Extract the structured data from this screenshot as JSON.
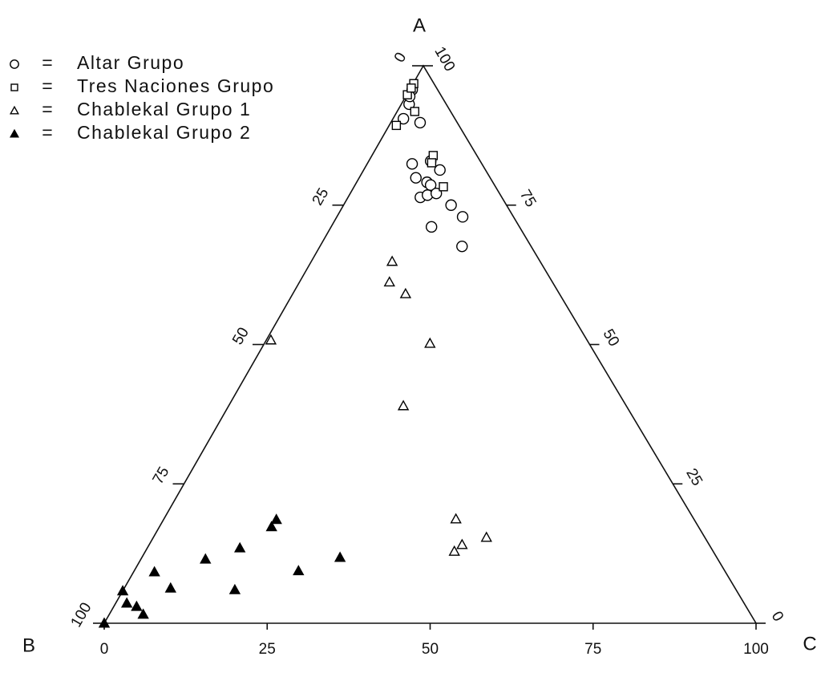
{
  "chart_data": {
    "type": "ternary",
    "vertex_labels": {
      "a": "A",
      "b": "B",
      "c": "C"
    },
    "alim": [
      0,
      100
    ],
    "blim": [
      0,
      100
    ],
    "clim": [
      0,
      100
    ],
    "aticks": [
      0,
      25,
      50,
      75,
      100
    ],
    "bticks": [
      0,
      25,
      50,
      75,
      100
    ],
    "cticks": [
      0,
      25,
      50,
      75,
      100
    ],
    "legend_separator": "=",
    "legend_position": "upper-left",
    "series": [
      {
        "name": "Altar Grupo",
        "marker": "circle",
        "filled": false,
        "color": "#000000",
        "a": [
          95.7,
          93.1,
          90.5,
          89.8,
          82.4,
          82.9,
          81.3,
          79.9,
          79.1,
          78.6,
          76.4,
          76.8,
          77.1,
          75.0,
          72.9,
          71.1,
          67.6,
          94.5
        ],
        "c": [
          0.4,
          1.2,
          1.6,
          4.5,
          6.9,
          9.5,
          11.7,
          8.7,
          10.8,
          11.6,
          11.1,
          12.0,
          13.2,
          16.5,
          19.3,
          15.4,
          21.8,
          0.6
        ]
      },
      {
        "name": "Tres Naciones Grupo",
        "marker": "square",
        "filled": false,
        "color": "#000000",
        "a": [
          96.8,
          94.8,
          91.8,
          89.3,
          83.9,
          82.6,
          78.3,
          96.0
        ],
        "c": [
          0.1,
          0.1,
          2.7,
          1.1,
          9.4,
          9.8,
          13.7,
          0.1
        ]
      },
      {
        "name": "Chablekal Grupo 1",
        "marker": "triangle",
        "filled": false,
        "color": "#000000",
        "a": [
          64.9,
          61.2,
          59.1,
          50.2,
          50.8,
          39.0,
          18.7,
          15.4,
          14.1,
          12.9
        ],
        "c": [
          12.4,
          13.8,
          17.3,
          25.4,
          0.7,
          26.8,
          44.8,
          51.1,
          48.0,
          47.4
        ]
      },
      {
        "name": "Chablekal Grupo 2",
        "marker": "triangle",
        "filled": true,
        "color": "#000000",
        "a": [
          18.6,
          17.3,
          13.5,
          11.5,
          11.8,
          9.4,
          9.2,
          6.0,
          6.3,
          5.8,
          3.6,
          3.0,
          1.6,
          0
        ],
        "c": [
          17.3,
          17.2,
          14.2,
          9.9,
          30.4,
          25.2,
          3.2,
          17.1,
          7.1,
          0.0,
          1.7,
          3.5,
          5.2,
          0
        ]
      }
    ]
  }
}
